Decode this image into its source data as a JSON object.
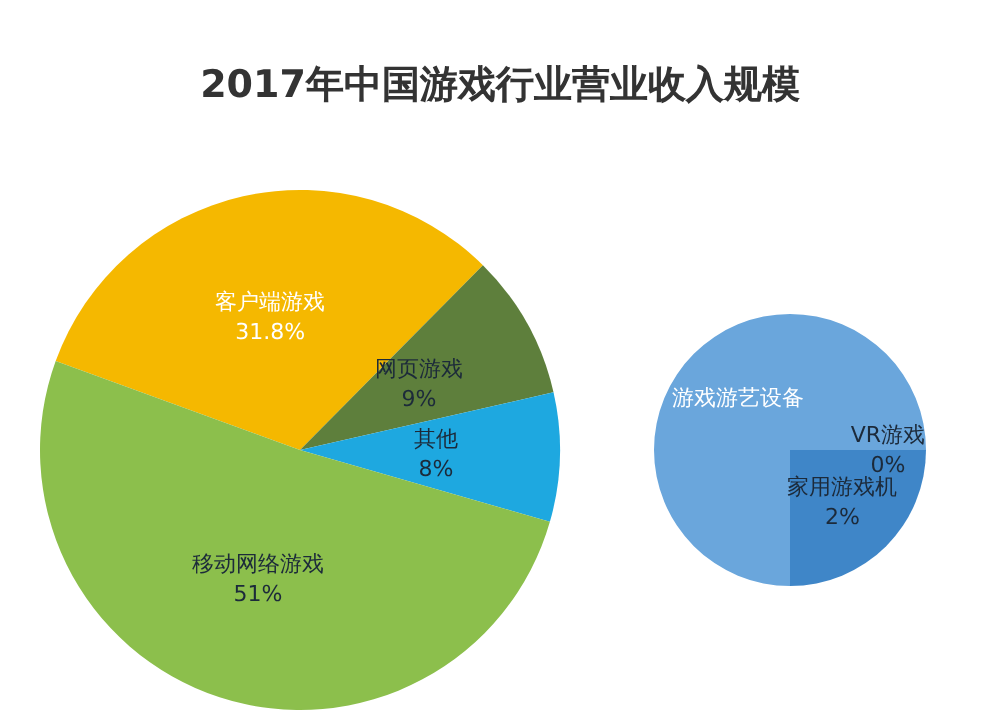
{
  "chart_data": [
    {
      "type": "pie",
      "title": "2017年中国游戏行业营业收入规模",
      "categories": [
        "客户端游戏",
        "网页游戏",
        "其他",
        "移动网络游戏"
      ],
      "values": [
        31.8,
        9,
        8,
        51
      ],
      "value_labels": [
        "31.8%",
        "9%",
        "8%",
        "51%"
      ],
      "colors": [
        "#f5b800",
        "#5e7f3c",
        "#1ea8e0",
        "#8cbf4c"
      ],
      "legend": false
    },
    {
      "type": "pie",
      "categories": [
        "游戏游艺设备",
        "VR游戏",
        "家用游戏机"
      ],
      "values": [
        6,
        0,
        2
      ],
      "value_labels": [
        null,
        "0%",
        "2%"
      ],
      "colors": [
        "#6aa6dc",
        "#1f4e8c",
        "#3f86c8"
      ],
      "legend": false
    }
  ]
}
